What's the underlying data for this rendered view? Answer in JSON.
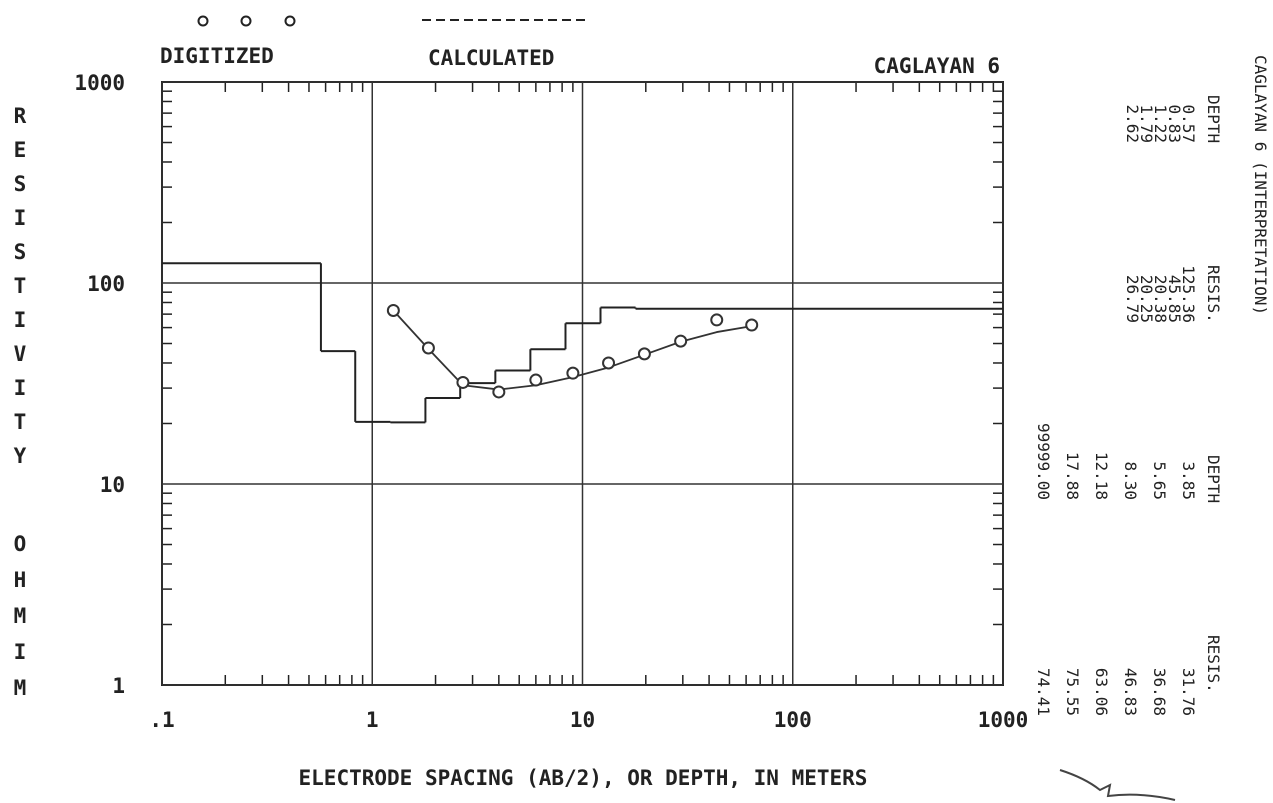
{
  "chart_data": {
    "type": "line",
    "title": "CAGLAYAN 6",
    "xlabel": "ELECTRODE SPACING (AB/2), OR DEPTH, IN METERS",
    "ylabel": [
      "RESISTIVITY",
      "OHMIM"
    ],
    "xlim": [
      0.1,
      1000
    ],
    "ylim": [
      1,
      1000
    ],
    "xticks": [
      {
        "value": 0.1,
        "label": ".1"
      },
      1,
      10,
      100,
      1000
    ],
    "yticks": [
      1,
      10,
      100,
      1000
    ],
    "log_x": true,
    "log_y": true,
    "grid": true,
    "series": [
      {
        "name": "DIGITIZED",
        "color": "#333333",
        "marker": "circle",
        "x": [
          1.26,
          1.85,
          2.7,
          4.0,
          6.0,
          9.0,
          13.3,
          19.7,
          29.3,
          43.5,
          63.8
        ],
        "values": [
          73,
          47.5,
          32,
          28.7,
          32.9,
          35.6,
          40,
          44.4,
          51.4,
          65.5,
          61.8
        ]
      },
      {
        "name": "CALCULATED",
        "color": "#333333",
        "marker": "none",
        "x": [
          1.26,
          1.85,
          2.7,
          4.0,
          6.0,
          9.0,
          13.3,
          19.7,
          29.3,
          43.5,
          63.8
        ],
        "values": [
          73,
          47,
          31,
          29.5,
          31,
          34,
          38,
          44,
          51,
          57,
          61
        ]
      }
    ],
    "interpretation": {
      "title": "CAGLAYAN 6  (INTERPRETATION)",
      "groups": [
        {
          "depth_header": "DEPTH",
          "resis_header": "RESIS.",
          "depth": [
            "0.57",
            "0.83",
            "1.22",
            "1.79",
            "2.62"
          ],
          "resis": [
            "125.36",
            "45.85",
            "20.38",
            "20.25",
            "26.79"
          ]
        },
        {
          "depth_header": "DEPTH",
          "resis_header": "RESIS.",
          "depth": [
            "3.85",
            "5.65",
            "8.30",
            "12.18",
            "17.88",
            "99999.00"
          ],
          "resis": [
            "31.76",
            "36.68",
            "46.83",
            "63.06",
            "75.55",
            "74.41"
          ]
        }
      ]
    }
  }
}
